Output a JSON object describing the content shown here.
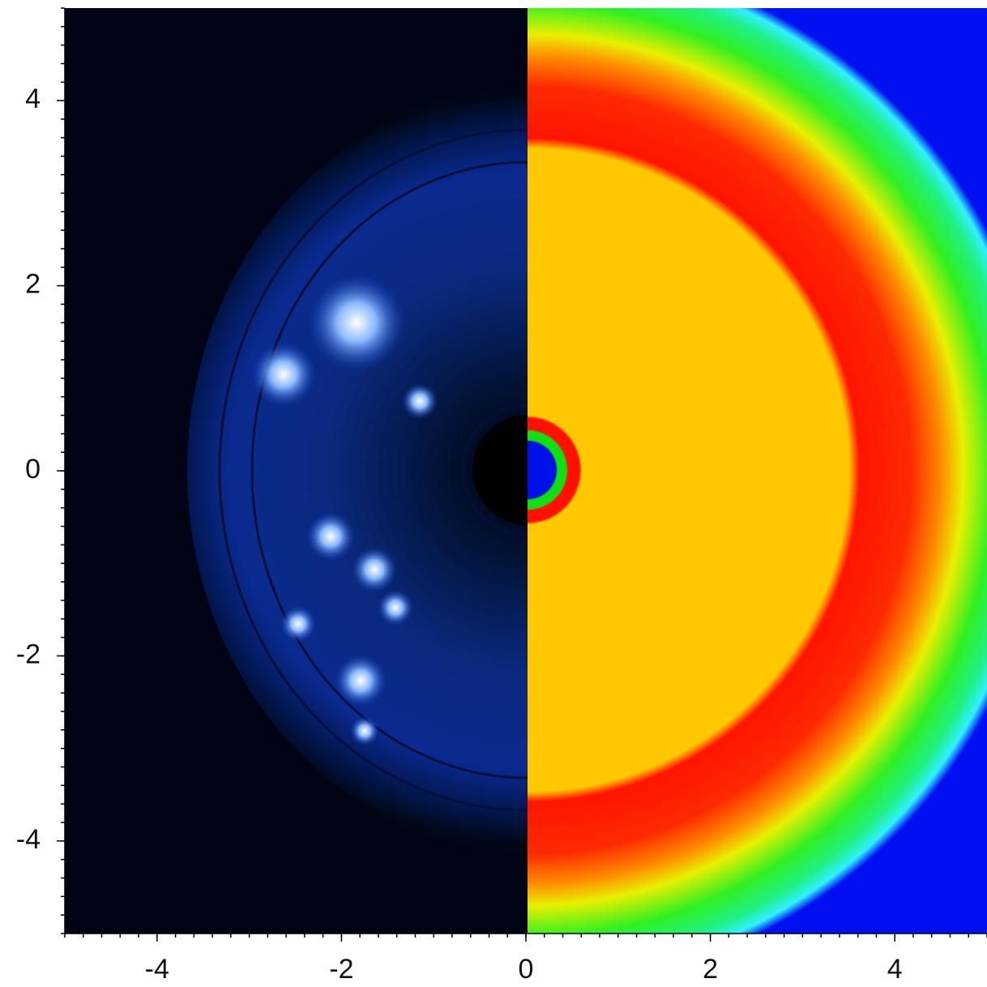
{
  "chart_data": {
    "type": "image",
    "xlim": [
      -5,
      5
    ],
    "ylim": [
      -5,
      5
    ],
    "xticks": [
      -4,
      -2,
      0,
      2,
      4
    ],
    "yticks": [
      -4,
      -2,
      0,
      2,
      4
    ]
  }
}
